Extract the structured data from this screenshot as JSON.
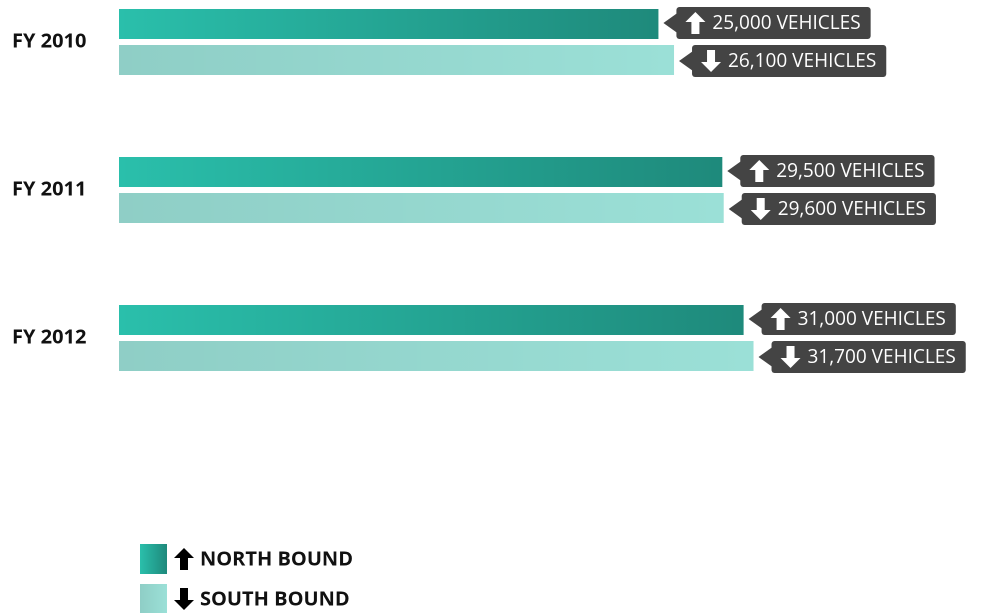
{
  "chart_data": {
    "type": "bar",
    "orientation": "horizontal",
    "categories": [
      "FY 2010",
      "FY 2011",
      "FY 2012"
    ],
    "series": [
      {
        "name": "NORTH BOUND",
        "color": "#2abfab",
        "values": [
          25000,
          29500,
          31000
        ],
        "value_labels": [
          "25,000 VEHICLES",
          "29,500 VEHICLES",
          "31,000 VEHICLES"
        ]
      },
      {
        "name": "SOUTH BOUND",
        "color": "#9be0d7",
        "values": [
          26100,
          29600,
          31700
        ],
        "value_labels": [
          "26,100 VEHICLES",
          "29,600 VEHICLES",
          "31,700 VEHICLES"
        ]
      }
    ],
    "xlim": [
      -13000,
      48500
    ],
    "legend": "bottom-left"
  }
}
